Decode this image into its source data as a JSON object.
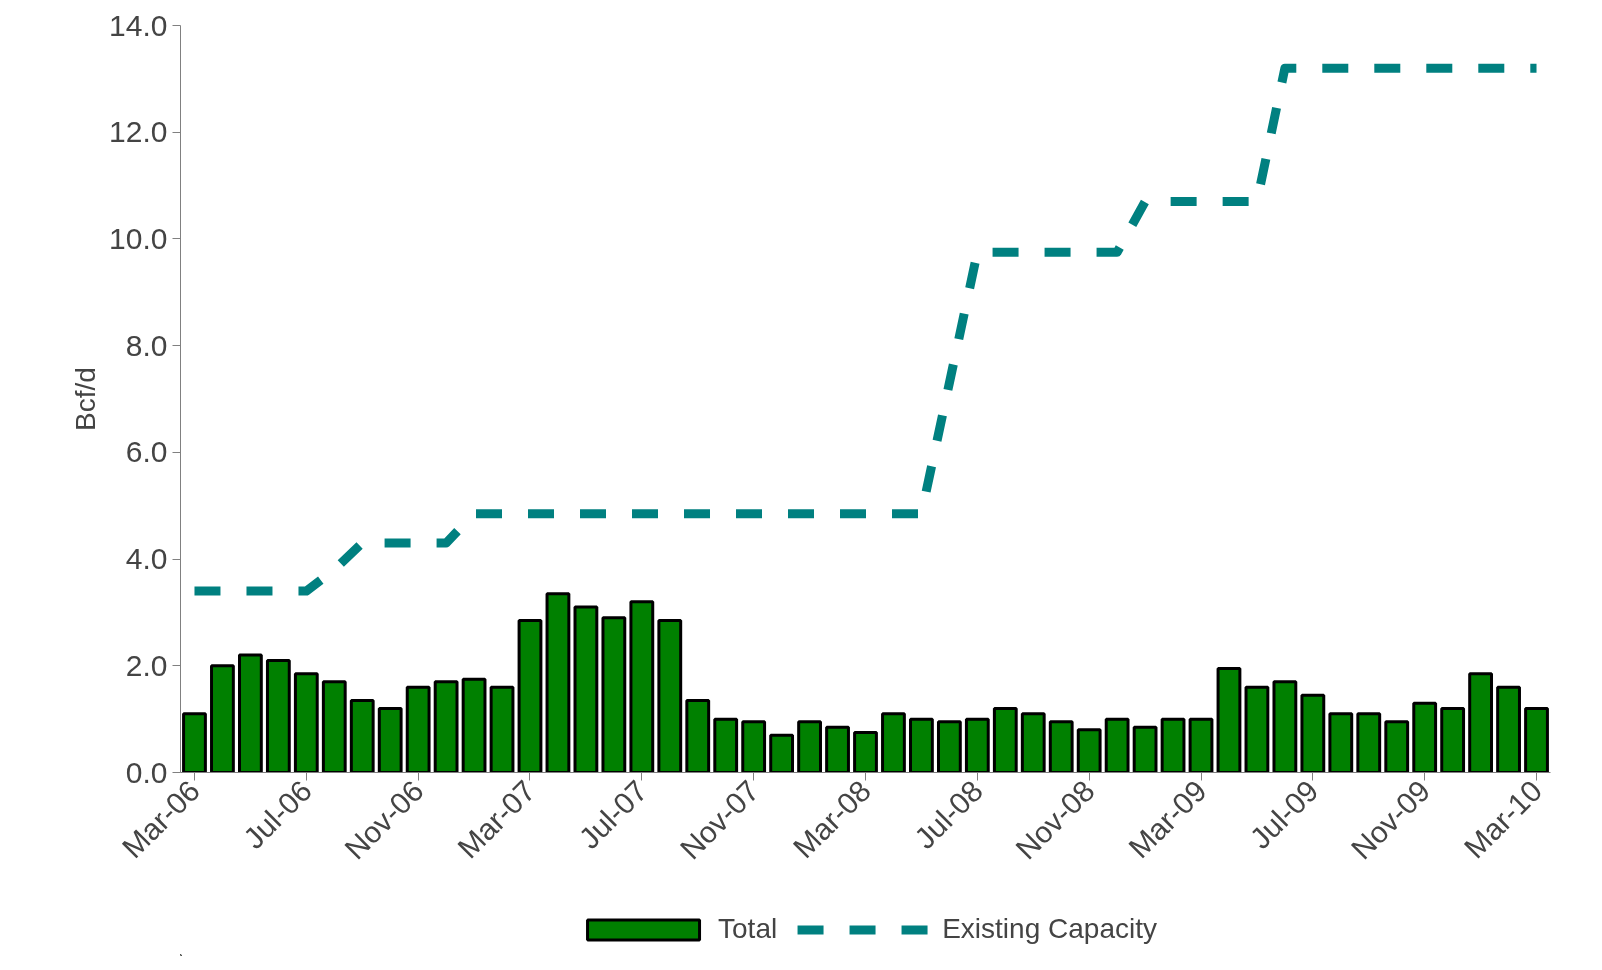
{
  "chart_data": {
    "type": "bar",
    "ylabel": "Bcf/d",
    "categories": [
      "Mar-06",
      null,
      null,
      null,
      "Jul-06",
      null,
      null,
      null,
      "Nov-06",
      null,
      null,
      null,
      "Mar-07",
      null,
      null,
      null,
      "Jul-07",
      null,
      null,
      null,
      "Nov-07",
      null,
      null,
      null,
      "Mar-08",
      null,
      null,
      null,
      "Jul-08",
      null,
      null,
      null,
      "Nov-08",
      null,
      null,
      null,
      "Mar-09",
      null,
      null,
      null,
      "Jul-09",
      null,
      null,
      null,
      "Nov-09",
      null,
      null,
      null,
      "Mar-10"
    ],
    "series": [
      {
        "name": "Total",
        "color": "#008000",
        "values": [
          1.1,
          2.0,
          2.2,
          2.1,
          1.85,
          1.7,
          1.35,
          1.2,
          1.6,
          1.7,
          1.75,
          1.6,
          2.85,
          3.35,
          3.1,
          2.9,
          3.2,
          2.85,
          1.35,
          1.0,
          0.95,
          0.7,
          0.95,
          0.85,
          0.75,
          1.1,
          1.0,
          0.95,
          1.0,
          1.2,
          1.1,
          0.95,
          0.8,
          1.0,
          0.85,
          1.0,
          1.0,
          1.95,
          1.6,
          1.7,
          1.45,
          1.1,
          1.1,
          0.95,
          1.3,
          1.2,
          1.85,
          1.6,
          1.2
        ]
      },
      {
        "name": "Existing Capacity",
        "type": "line",
        "line_style": "dashed",
        "color": "#008080",
        "values": [
          3.4,
          3.4,
          3.4,
          3.4,
          3.4,
          3.8,
          4.3,
          4.3,
          4.3,
          4.3,
          4.85,
          4.85,
          4.85,
          4.85,
          4.85,
          4.85,
          4.85,
          4.85,
          4.85,
          4.85,
          4.85,
          4.85,
          4.85,
          4.85,
          4.85,
          4.85,
          4.85,
          7.3,
          9.75,
          9.75,
          9.75,
          9.75,
          9.75,
          9.75,
          10.7,
          10.7,
          10.7,
          10.7,
          10.7,
          13.2,
          13.2,
          13.2,
          13.2,
          13.2,
          13.2,
          13.2,
          13.2,
          13.2,
          13.2
        ]
      }
    ],
    "ylim": [
      0,
      14
    ],
    "yticks": [
      {
        "value": 0,
        "label": "0.0"
      },
      {
        "value": 2,
        "label": "2.0"
      },
      {
        "value": 4,
        "label": "4.0"
      },
      {
        "value": 6,
        "label": "6.0"
      },
      {
        "value": 8,
        "label": "8.0"
      },
      {
        "value": 10,
        "label": "10.0"
      },
      {
        "value": 12,
        "label": "12.0"
      },
      {
        "value": 14,
        "label": "14.0"
      }
    ],
    "grid": false,
    "legend": "bottom"
  }
}
